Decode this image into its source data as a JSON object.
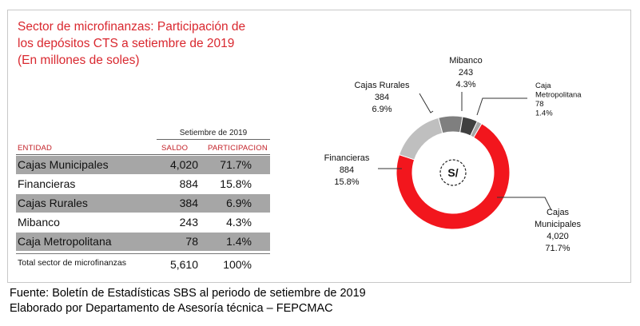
{
  "title_lines": [
    "Sector de microfinanzas: Participación de",
    "los depósitos CTS a setiembre de 2019",
    "(En millones de soles)"
  ],
  "table": {
    "period": "Setiembre de 2019",
    "headers": {
      "entity": "ENTIDAD",
      "balance": "SALDO",
      "share": "PARTICIPACION"
    },
    "rows": [
      {
        "entity": "Cajas Municipales",
        "balance": "4,020",
        "share": "71.7%"
      },
      {
        "entity": "Financieras",
        "balance": "884",
        "share": "15.8%"
      },
      {
        "entity": "Cajas Rurales",
        "balance": "384",
        "share": "6.9%"
      },
      {
        "entity": "Mibanco",
        "balance": "243",
        "share": "4.3%"
      },
      {
        "entity": "Caja Metropolitana",
        "balance": "78",
        "share": "1.4%"
      }
    ],
    "total": {
      "entity": "Total sector de microfinanzas",
      "balance": "5,610",
      "share": "100%"
    }
  },
  "chart_data": {
    "type": "pie",
    "variant": "donut",
    "center_symbol": "S/",
    "slices": [
      {
        "label_lines": [
          "Cajas",
          "Municipales"
        ],
        "value_text": "4,020",
        "pct_text": "71.7%",
        "value": 4020,
        "pct": 71.7,
        "color": "#f2161d"
      },
      {
        "label_lines": [
          "Financieras"
        ],
        "value_text": "884",
        "pct_text": "15.8%",
        "value": 884,
        "pct": 15.8,
        "color": "#bfbfbf"
      },
      {
        "label_lines": [
          "Cajas Rurales"
        ],
        "value_text": "384",
        "pct_text": "6.9%",
        "value": 384,
        "pct": 6.9,
        "color": "#7f7f7f"
      },
      {
        "label_lines": [
          "Mibanco"
        ],
        "value_text": "243",
        "pct_text": "4.3%",
        "value": 243,
        "pct": 4.3,
        "color": "#404040"
      },
      {
        "label_lines": [
          "Caja",
          "Metropolitana"
        ],
        "value_text": "78",
        "pct_text": "1.4%",
        "value": 78,
        "pct": 1.4,
        "color": "#a6a6a6"
      }
    ]
  },
  "footer_lines": [
    "Fuente: Boletín de Estadísticas SBS al periodo de setiembre de 2019",
    "Elaborado por Departamento de Asesoría técnica – FEPCMAC"
  ]
}
